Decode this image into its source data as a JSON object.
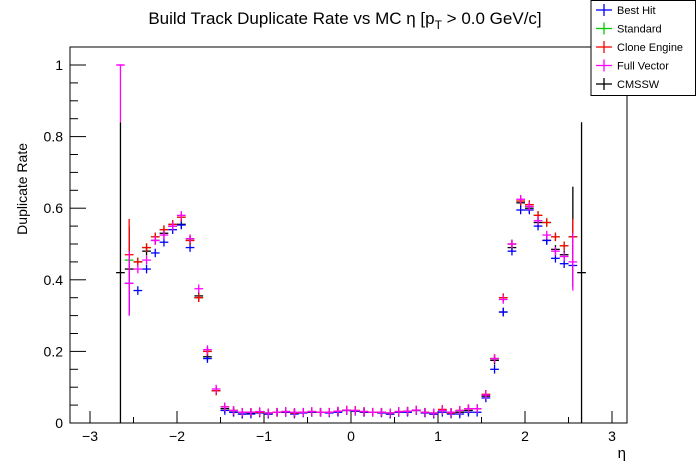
{
  "chart_data": {
    "type": "scatter",
    "title": "Build Track Duplicate Rate vs MC η [p",
    "title_sub": "T",
    "title_tail": " > 0.0 GeV/c]",
    "xlabel": "η",
    "ylabel": "Duplicate Rate",
    "xlim": [
      -3.0,
      3.2
    ],
    "ylim": [
      0,
      1.05
    ],
    "xticks": [
      -3,
      -2,
      -1,
      0,
      1,
      2,
      3
    ],
    "xtick_labels": [
      "−3",
      "−2",
      "−1",
      "0",
      "1",
      "2",
      "3"
    ],
    "yticks": [
      0,
      0.2,
      0.4,
      0.6,
      0.8,
      1
    ],
    "ytick_labels": [
      "0",
      "0.2",
      "0.4",
      "0.6",
      "0.8",
      "1"
    ],
    "bin_width": 0.1,
    "x": [
      -2.65,
      -2.55,
      -2.45,
      -2.35,
      -2.25,
      -2.15,
      -2.05,
      -1.95,
      -1.85,
      -1.75,
      -1.65,
      -1.55,
      -1.45,
      -1.35,
      -1.25,
      -1.15,
      -1.05,
      -0.95,
      -0.85,
      -0.75,
      -0.65,
      -0.55,
      -0.45,
      -0.35,
      -0.25,
      -0.15,
      -0.05,
      0.05,
      0.15,
      0.25,
      0.35,
      0.45,
      0.55,
      0.65,
      0.75,
      0.85,
      0.95,
      1.05,
      1.15,
      1.25,
      1.35,
      1.45,
      1.55,
      1.65,
      1.75,
      1.85,
      1.95,
      2.05,
      2.15,
      2.25,
      2.35,
      2.45,
      2.55,
      2.65
    ],
    "legend_position": "top-right",
    "series": [
      {
        "name": "Best Hit",
        "color": "#0000ff",
        "values": [
          null,
          0.39,
          0.37,
          0.43,
          0.475,
          0.505,
          0.54,
          0.553,
          0.49,
          0.35,
          0.18,
          0.09,
          0.035,
          0.03,
          0.025,
          0.025,
          0.028,
          0.025,
          0.03,
          0.03,
          0.025,
          0.028,
          0.03,
          0.03,
          0.028,
          0.03,
          0.035,
          0.033,
          0.03,
          0.03,
          0.028,
          0.025,
          0.03,
          0.03,
          0.035,
          0.028,
          0.025,
          0.03,
          0.025,
          0.025,
          0.03,
          0.03,
          0.07,
          0.15,
          0.31,
          0.48,
          0.595,
          0.595,
          0.55,
          0.51,
          0.46,
          0.445,
          0.44,
          null
        ]
      },
      {
        "name": "Standard",
        "color": "#00cc00",
        "values": [
          null,
          0.455,
          0.45,
          0.49,
          0.52,
          0.54,
          0.555,
          0.575,
          0.51,
          0.35,
          0.2,
          0.09,
          0.045,
          0.035,
          0.03,
          0.03,
          0.03,
          0.028,
          0.03,
          0.032,
          0.028,
          0.03,
          0.032,
          0.03,
          0.03,
          0.033,
          0.036,
          0.035,
          0.032,
          0.03,
          0.03,
          0.028,
          0.032,
          0.033,
          0.036,
          0.03,
          0.028,
          0.035,
          0.028,
          0.035,
          0.04,
          0.04,
          0.08,
          0.18,
          0.35,
          0.5,
          0.62,
          0.61,
          0.58,
          0.56,
          0.52,
          0.495,
          0.52,
          null
        ]
      },
      {
        "name": "Clone Engine",
        "color": "#ff0000",
        "values": [
          null,
          0.47,
          0.45,
          0.49,
          0.52,
          0.54,
          0.555,
          0.575,
          0.51,
          0.35,
          0.2,
          0.09,
          0.045,
          0.035,
          0.03,
          0.03,
          0.03,
          0.028,
          0.03,
          0.032,
          0.028,
          0.03,
          0.032,
          0.03,
          0.03,
          0.033,
          0.036,
          0.035,
          0.032,
          0.03,
          0.03,
          0.028,
          0.032,
          0.033,
          0.036,
          0.03,
          0.028,
          0.038,
          0.028,
          0.035,
          0.04,
          0.04,
          0.08,
          0.18,
          0.35,
          0.5,
          0.62,
          0.61,
          0.58,
          0.56,
          0.52,
          0.495,
          0.52,
          null
        ]
      },
      {
        "name": "Full Vector",
        "color": "#ff00ff",
        "values": [
          1.0,
          0.39,
          0.43,
          0.455,
          0.51,
          0.525,
          0.55,
          0.58,
          0.515,
          0.375,
          0.205,
          0.095,
          0.045,
          0.035,
          0.03,
          0.03,
          0.032,
          0.028,
          0.03,
          0.032,
          0.03,
          0.03,
          0.032,
          0.03,
          0.03,
          0.033,
          0.036,
          0.035,
          0.032,
          0.03,
          0.03,
          0.028,
          0.032,
          0.033,
          0.036,
          0.03,
          0.028,
          0.035,
          0.03,
          0.035,
          0.04,
          0.04,
          0.078,
          0.18,
          0.345,
          0.5,
          0.625,
          0.605,
          0.565,
          0.525,
          0.48,
          0.465,
          0.45,
          null
        ]
      },
      {
        "name": "CMSSW",
        "color": "#000000",
        "values": [
          0.42,
          0.43,
          0.45,
          0.48,
          0.51,
          0.53,
          0.55,
          0.555,
          0.51,
          0.355,
          0.185,
          0.09,
          0.04,
          0.03,
          0.025,
          0.028,
          0.03,
          0.025,
          0.03,
          0.03,
          0.028,
          0.03,
          0.03,
          0.03,
          0.03,
          0.032,
          0.035,
          0.033,
          0.03,
          0.03,
          0.03,
          0.025,
          0.03,
          0.032,
          0.035,
          0.03,
          0.025,
          0.035,
          0.03,
          0.03,
          0.035,
          0.04,
          0.075,
          0.175,
          0.31,
          0.49,
          0.615,
          0.6,
          0.56,
          0.51,
          0.485,
          0.47,
          0.52,
          0.42
        ]
      }
    ],
    "big_errors": [
      {
        "series": 3,
        "index": 0,
        "err": 0.16
      },
      {
        "series": 4,
        "index": 0,
        "err": 0.42
      },
      {
        "series": 4,
        "index": 1,
        "err": 0.12
      },
      {
        "series": 2,
        "index": 1,
        "err": 0.1
      },
      {
        "series": 3,
        "index": 1,
        "err": 0.09
      },
      {
        "series": 0,
        "index": 1,
        "err": 0.09
      },
      {
        "series": 2,
        "index": 52,
        "err": 0.05
      },
      {
        "series": 3,
        "index": 52,
        "err": 0.08
      },
      {
        "series": 4,
        "index": 52,
        "err": 0.14
      },
      {
        "series": 4,
        "index": 53,
        "err": 0.42
      }
    ]
  }
}
